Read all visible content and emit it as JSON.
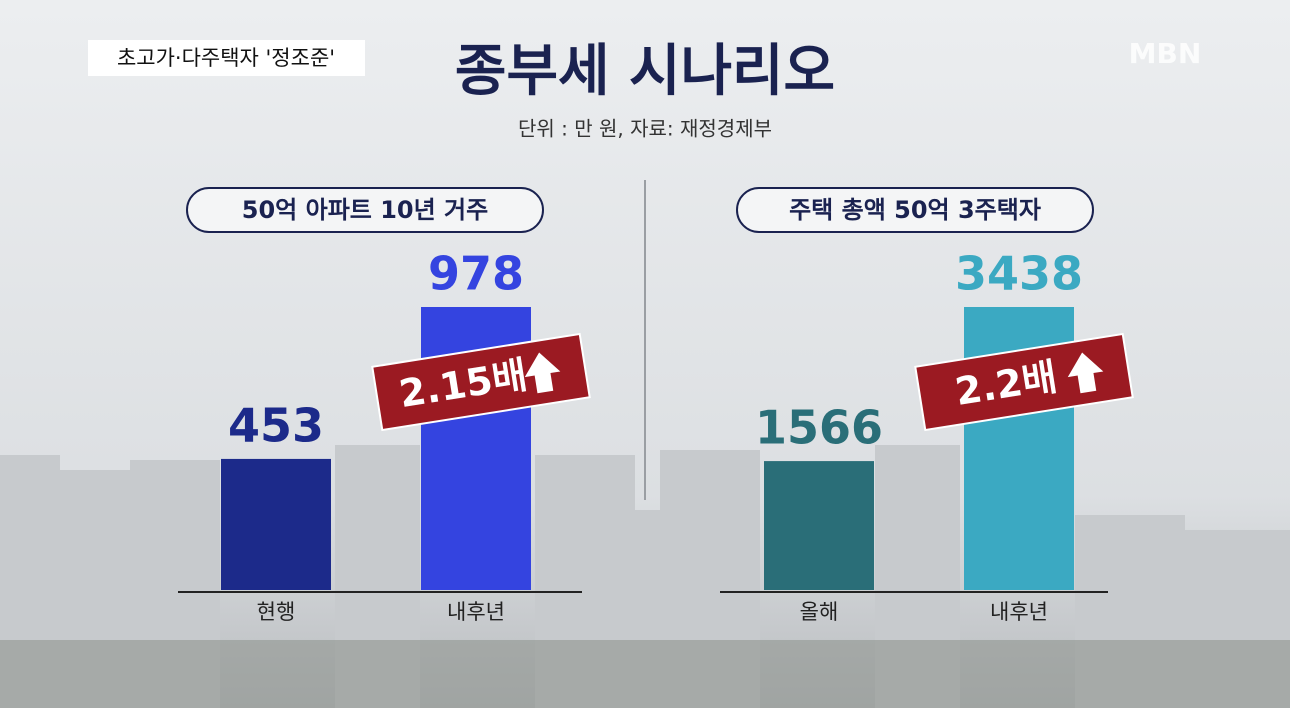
{
  "header": {
    "tag": "초고가·다주택자 '정조준'",
    "logo": "MBN",
    "title": "종부세 시나리오",
    "subtitle": "단위 :  만 원, 자료: 재정경제부"
  },
  "chart_data": [
    {
      "type": "bar",
      "title": "50억 아파트 10년 거주",
      "categories": [
        "현행",
        "내후년"
      ],
      "values": [
        453,
        978
      ],
      "colors": [
        "#1c2a8a",
        "#3444e0"
      ],
      "annotation": "2.15배"
    },
    {
      "type": "bar",
      "title": "주택 총액 50억 3주택자",
      "categories": [
        "올해",
        "내후년"
      ],
      "values": [
        1566,
        3438
      ],
      "colors": [
        "#2a6e78",
        "#3ba9c2"
      ],
      "annotation": "2.2배"
    }
  ]
}
